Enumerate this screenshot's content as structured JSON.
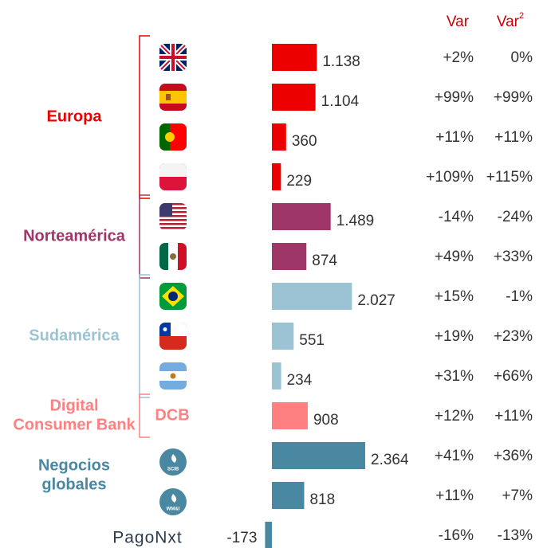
{
  "chart_data": {
    "type": "bar",
    "orientation": "horizontal",
    "column_headers": [
      {
        "text": "Var"
      },
      {
        "text": "Var",
        "superscript": "2"
      }
    ],
    "header_color": "#cc0000",
    "series": [
      {
        "name": [
          "Europa"
        ],
        "color": "#ec0000",
        "values": [
          1138,
          1104,
          360,
          229
        ],
        "value_labels": [
          "1.138",
          "1.104",
          "360",
          "229"
        ],
        "var": [
          "+2%",
          "+99%",
          "+11%",
          "+109%"
        ],
        "var2": [
          "0%",
          "+99%",
          "+11%",
          "+115%"
        ]
      },
      {
        "name": [
          "Norteamérica"
        ],
        "color": "#9e3667",
        "values": [
          1489,
          874
        ],
        "value_labels": [
          "1.489",
          "874"
        ],
        "var": [
          "-14%",
          "+49%"
        ],
        "var2": [
          "-24%",
          "+33%"
        ]
      },
      {
        "name": [
          "Sudamérica"
        ],
        "color": "#9bc3d3",
        "values": [
          2027,
          551,
          234
        ],
        "value_labels": [
          "2.027",
          "551",
          "234"
        ],
        "var": [
          "+15%",
          "+19%",
          "+31%"
        ],
        "var2": [
          "-1%",
          "+23%",
          "+66%"
        ]
      },
      {
        "name": [
          "Digital",
          "Consumer Bank"
        ],
        "abbreviation": "DCB",
        "color": "#ff8080",
        "values": [
          908
        ],
        "value_labels": [
          "908"
        ],
        "var": [
          "+12%"
        ],
        "var2": [
          "+11%"
        ]
      },
      {
        "name": [
          "Negocios",
          "globales"
        ],
        "icons": [
          "SCIB",
          "WM&I"
        ],
        "color": "#4a88a2",
        "values": [
          2364,
          818
        ],
        "value_labels": [
          "2.364",
          "818"
        ],
        "var": [
          "+41%",
          "+11%"
        ],
        "var2": [
          "+36%",
          "+7%"
        ]
      },
      {
        "name": [
          "PagoNxt"
        ],
        "color": "#4a88a2",
        "values": [
          -173
        ],
        "value_labels": [
          "-173"
        ],
        "var": [
          "-16%"
        ],
        "var2": [
          "-13%"
        ]
      }
    ]
  }
}
